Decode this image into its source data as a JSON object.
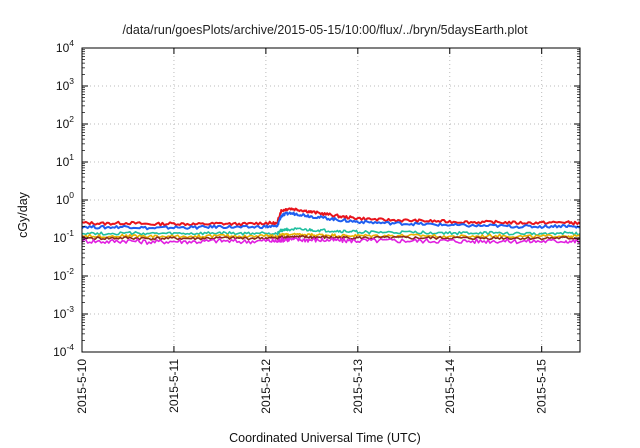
{
  "chart_data": {
    "type": "line",
    "title": "/data/run/goesPlots/archive/2015-05-15/10:00/flux/../bryn/5daysEarth.plot",
    "xlabel": "Coordinated Universal Time (UTC)",
    "ylabel": "cGy/day",
    "yscale": "log",
    "ylim": [
      0.0001,
      10000
    ],
    "yticks": [
      {
        "base": "10",
        "exp": "-4",
        "value": 0.0001
      },
      {
        "base": "10",
        "exp": "-3",
        "value": 0.001
      },
      {
        "base": "10",
        "exp": "-2",
        "value": 0.01
      },
      {
        "base": "10",
        "exp": "-1",
        "value": 0.1
      },
      {
        "base": "10",
        "exp": "0",
        "value": 1
      },
      {
        "base": "10",
        "exp": "1",
        "value": 10
      },
      {
        "base": "10",
        "exp": "2",
        "value": 100
      },
      {
        "base": "10",
        "exp": "3",
        "value": 1000
      },
      {
        "base": "10",
        "exp": "4",
        "value": 10000
      }
    ],
    "xlim": [
      "2015-05-10T00:00",
      "2015-05-15T10:00"
    ],
    "xticks": [
      {
        "label": "2015-5-10",
        "date": "2015-05-10"
      },
      {
        "label": "2015-5-11",
        "date": "2015-05-11"
      },
      {
        "label": "2015-5-12",
        "date": "2015-05-12"
      },
      {
        "label": "2015-5-13",
        "date": "2015-05-13"
      },
      {
        "label": "2015-5-14",
        "date": "2015-05-14"
      },
      {
        "label": "2015-5-15",
        "date": "2015-05-15"
      }
    ],
    "grid": true,
    "x": [
      "2015-05-10T00:00",
      "2015-05-10T06:00",
      "2015-05-10T12:00",
      "2015-05-10T18:00",
      "2015-05-11T00:00",
      "2015-05-11T06:00",
      "2015-05-11T12:00",
      "2015-05-11T18:00",
      "2015-05-12T00:00",
      "2015-05-12T03:00",
      "2015-05-12T04:00",
      "2015-05-12T06:00",
      "2015-05-12T09:00",
      "2015-05-12T12:00",
      "2015-05-12T16:00",
      "2015-05-12T20:00",
      "2015-05-13T00:00",
      "2015-05-13T06:00",
      "2015-05-13T12:00",
      "2015-05-13T18:00",
      "2015-05-14T00:00",
      "2015-05-14T06:00",
      "2015-05-14T12:00",
      "2015-05-14T18:00",
      "2015-05-15T00:00",
      "2015-05-15T06:00",
      "2015-05-15T10:00"
    ],
    "series": [
      {
        "color": "#e8141c",
        "values": [
          0.25,
          0.24,
          0.25,
          0.23,
          0.24,
          0.23,
          0.24,
          0.23,
          0.25,
          0.24,
          0.52,
          0.6,
          0.55,
          0.48,
          0.42,
          0.36,
          0.33,
          0.3,
          0.29,
          0.28,
          0.27,
          0.26,
          0.26,
          0.25,
          0.25,
          0.26,
          0.24
        ]
      },
      {
        "color": "#1f5ff0",
        "values": [
          0.2,
          0.19,
          0.2,
          0.18,
          0.19,
          0.19,
          0.2,
          0.19,
          0.2,
          0.2,
          0.38,
          0.45,
          0.42,
          0.37,
          0.33,
          0.29,
          0.27,
          0.25,
          0.24,
          0.23,
          0.22,
          0.21,
          0.21,
          0.2,
          0.2,
          0.21,
          0.19
        ]
      },
      {
        "color": "#1fbf9f",
        "values": [
          0.135,
          0.13,
          0.135,
          0.13,
          0.13,
          0.13,
          0.135,
          0.13,
          0.135,
          0.13,
          0.16,
          0.17,
          0.165,
          0.16,
          0.155,
          0.15,
          0.145,
          0.14,
          0.14,
          0.14,
          0.135,
          0.135,
          0.135,
          0.13,
          0.13,
          0.135,
          0.13
        ]
      },
      {
        "color": "#e8b000",
        "values": [
          0.115,
          0.11,
          0.115,
          0.11,
          0.11,
          0.11,
          0.115,
          0.11,
          0.115,
          0.11,
          0.12,
          0.125,
          0.12,
          0.12,
          0.12,
          0.115,
          0.115,
          0.115,
          0.115,
          0.115,
          0.11,
          0.11,
          0.115,
          0.11,
          0.11,
          0.115,
          0.11
        ]
      },
      {
        "color": "#8a2a1a",
        "values": [
          0.1,
          0.098,
          0.1,
          0.097,
          0.098,
          0.097,
          0.1,
          0.098,
          0.1,
          0.098,
          0.105,
          0.108,
          0.106,
          0.105,
          0.104,
          0.102,
          0.101,
          0.101,
          0.101,
          0.1,
          0.1,
          0.099,
          0.1,
          0.099,
          0.099,
          0.1,
          0.098
        ]
      },
      {
        "color": "#e020e0",
        "values": [
          0.085,
          0.08,
          0.085,
          0.078,
          0.082,
          0.08,
          0.085,
          0.08,
          0.085,
          0.082,
          0.09,
          0.092,
          0.09,
          0.089,
          0.088,
          0.086,
          0.085,
          0.085,
          0.085,
          0.084,
          0.084,
          0.082,
          0.084,
          0.082,
          0.082,
          0.084,
          0.08
        ]
      }
    ]
  }
}
